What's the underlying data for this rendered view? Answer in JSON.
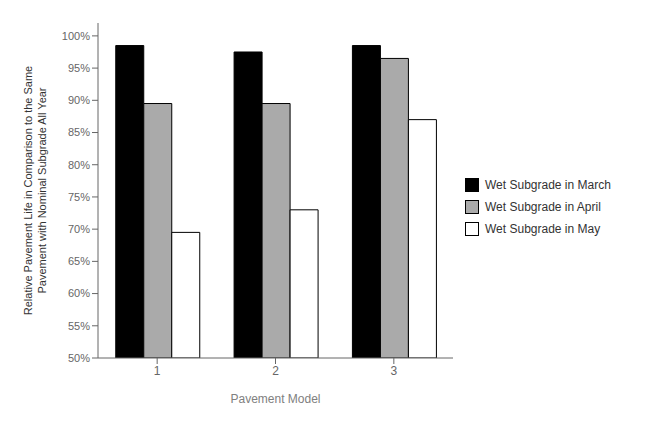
{
  "chart_data": {
    "type": "bar",
    "categories": [
      "1",
      "2",
      "3"
    ],
    "series": [
      {
        "name": "Wet Subgrade in March",
        "color": "#000000",
        "values": [
          0.985,
          0.975,
          0.985
        ]
      },
      {
        "name": "Wet Subgrade in April",
        "color": "#aaaaaa",
        "values": [
          0.895,
          0.895,
          0.965
        ]
      },
      {
        "name": "Wet Subgrade in May",
        "color": "#ffffff",
        "values": [
          0.695,
          0.73,
          0.87
        ]
      }
    ],
    "xlabel": "Pavement Model",
    "ylabel": "Relative Pavement Life in Comparison to the Same\nPavement with Nominal Subgrade All Year",
    "ylim": [
      0.5,
      1.02
    ],
    "yticks": [
      {
        "value": 0.5,
        "label": "50%"
      },
      {
        "value": 0.55,
        "label": "55%"
      },
      {
        "value": 0.6,
        "label": "60%"
      },
      {
        "value": 0.65,
        "label": "65%"
      },
      {
        "value": 0.7,
        "label": "70%"
      },
      {
        "value": 0.75,
        "label": "75%"
      },
      {
        "value": 0.8,
        "label": "80%"
      },
      {
        "value": 0.85,
        "label": "85%"
      },
      {
        "value": 0.9,
        "label": "90%"
      },
      {
        "value": 0.95,
        "label": "95%"
      },
      {
        "value": 1.0,
        "label": "100%"
      }
    ],
    "grid": false,
    "legend": "right"
  }
}
